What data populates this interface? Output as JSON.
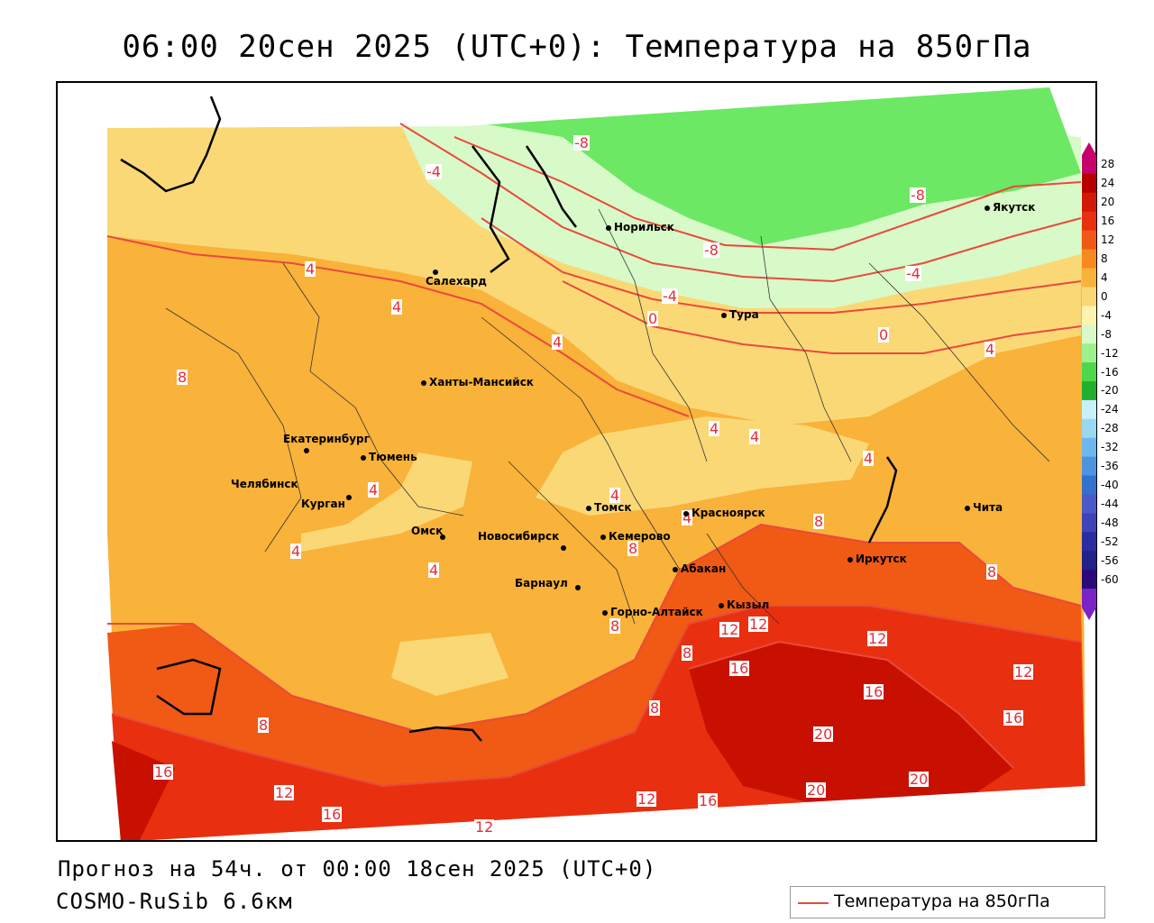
{
  "title": "06:00 20сен 2025 (UTC+0): Температура на 850гПа",
  "footer": {
    "forecast": "Прогноз на 54ч. от 00:00 18сен 2025 (UTC+0)",
    "model": "COSMO-RuSib 6.6км"
  },
  "legend": {
    "label": "Температура на 850гПа",
    "line_color": "#e84a3c"
  },
  "colorbar": {
    "labels": [
      "28",
      "24",
      "20",
      "16",
      "12",
      "8",
      "4",
      "0",
      "-4",
      "-8",
      "-12",
      "-16",
      "-20",
      "-24",
      "-28",
      "-32",
      "-36",
      "-40",
      "-44",
      "-48",
      "-52",
      "-56",
      "-60"
    ],
    "colors": [
      "#c8006e",
      "#b80000",
      "#d41808",
      "#e83010",
      "#f05a14",
      "#f78a1e",
      "#f9b23a",
      "#fbd876",
      "#fff3b0",
      "#d8f9c8",
      "#9ef08c",
      "#4cd84a",
      "#1fae2e",
      "#c8f0f8",
      "#9ad8f0",
      "#6cb8ec",
      "#4c94e0",
      "#3470d0",
      "#4a58c8",
      "#3c44b8",
      "#2c2ca0",
      "#22208a",
      "#2a0a78",
      "#7a24c8"
    ]
  },
  "cities": [
    {
      "name": "Норильск"
    },
    {
      "name": "Якутск"
    },
    {
      "name": "Салехард"
    },
    {
      "name": "Тура"
    },
    {
      "name": "Ханты-Мансийск"
    },
    {
      "name": "Екатеринбург"
    },
    {
      "name": "Тюмень"
    },
    {
      "name": "Челябинск"
    },
    {
      "name": "Курган"
    },
    {
      "name": "Омск"
    },
    {
      "name": "Новосибирск"
    },
    {
      "name": "Томск"
    },
    {
      "name": "Кемерово"
    },
    {
      "name": "Красноярск"
    },
    {
      "name": "Барнаул"
    },
    {
      "name": "Абакан"
    },
    {
      "name": "Горно-Алтайск"
    },
    {
      "name": "Кызыл"
    },
    {
      "name": "Иркутск"
    },
    {
      "name": "Чита"
    }
  ],
  "isotherm_labels": [
    "-8",
    "-4",
    "-8",
    "-8",
    "-4",
    "-4",
    "0",
    "0",
    "4",
    "4",
    "4",
    "4",
    "4",
    "4",
    "4",
    "4",
    "4",
    "4",
    "4",
    "4",
    "8",
    "8",
    "8",
    "8",
    "8",
    "8",
    "8",
    "8",
    "12",
    "12",
    "12",
    "12",
    "12",
    "12",
    "12",
    "16",
    "16",
    "16",
    "16",
    "16",
    "16",
    "20",
    "20",
    "20"
  ]
}
